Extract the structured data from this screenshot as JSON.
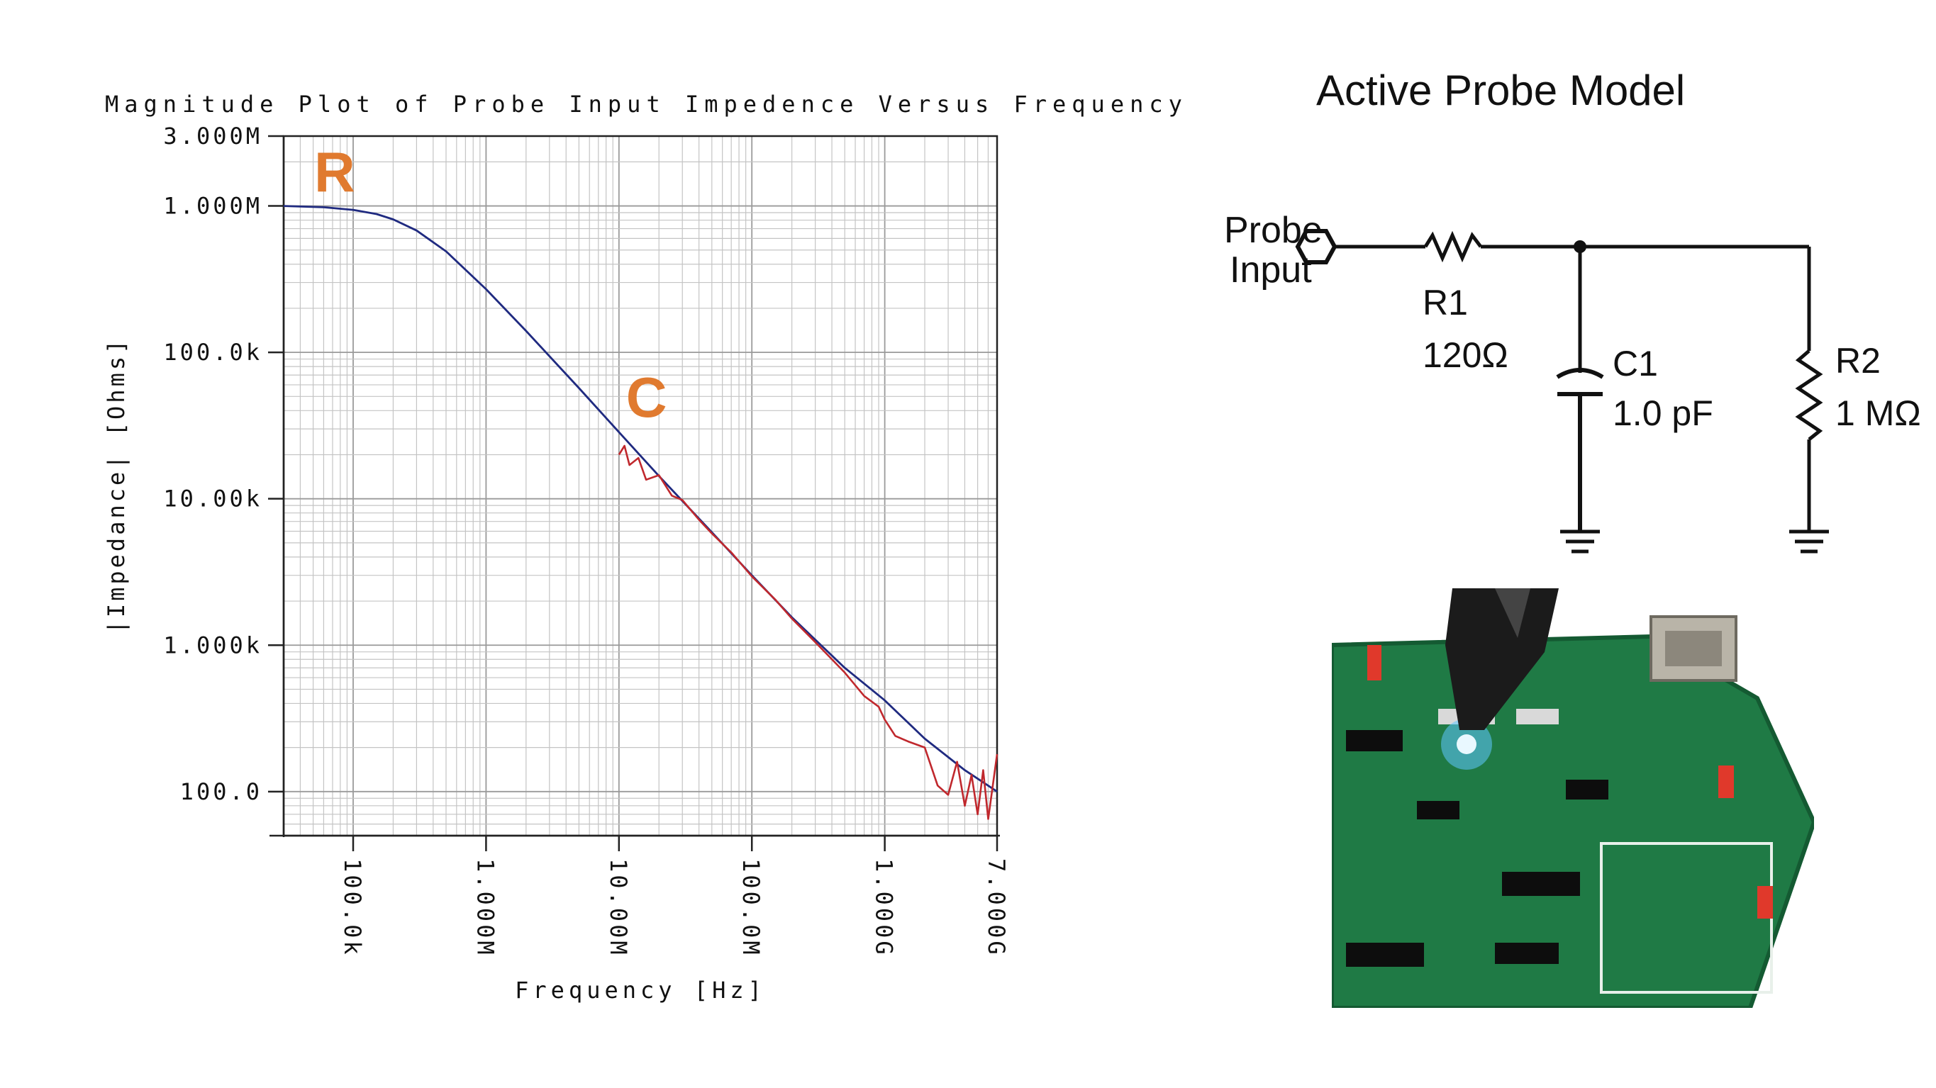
{
  "chart_data": {
    "type": "line",
    "title": "Magnitude Plot of Probe Input Impedence Versus Frequency",
    "xlabel": "Frequency [Hz]",
    "ylabel": "|Impedance| [Ohms]",
    "x_scale": "log",
    "y_scale": "log",
    "xlim": [
      30000,
      7000000000
    ],
    "ylim": [
      50,
      3000000
    ],
    "x_ticks": [
      {
        "value": 100000,
        "label": "100.0k"
      },
      {
        "value": 1000000,
        "label": "1.000M"
      },
      {
        "value": 10000000,
        "label": "10.00M"
      },
      {
        "value": 100000000,
        "label": "100.0M"
      },
      {
        "value": 1000000000,
        "label": "1.000G"
      },
      {
        "value": 7000000000,
        "label": "7.000G"
      }
    ],
    "y_ticks": [
      {
        "value": 3000000,
        "label": "3.000M"
      },
      {
        "value": 1000000,
        "label": "1.000M"
      },
      {
        "value": 100000,
        "label": "100.0k"
      },
      {
        "value": 10000,
        "label": "10.00k"
      },
      {
        "value": 1000,
        "label": "1.000k"
      },
      {
        "value": 100,
        "label": "100.0"
      }
    ],
    "annotations": [
      {
        "text": "R",
        "x": 45000,
        "y": 1000000,
        "color": "#e07a2f"
      },
      {
        "text": "C",
        "x": 10000000,
        "y": 29000,
        "color": "#e07a2f"
      }
    ],
    "series": [
      {
        "color": "#1f2a80",
        "x": [
          30000,
          60000,
          100000,
          150000,
          200000,
          300000,
          500000,
          1000000,
          2000000,
          5000000,
          10000000,
          20000000,
          50000000,
          100000000,
          200000000,
          500000000,
          1000000000,
          2000000000,
          4000000000,
          7000000000
        ],
        "y": [
          1000000,
          980000,
          940000,
          880000,
          810000,
          680000,
          490000,
          270000,
          140000,
          57000,
          28500,
          14300,
          5900,
          3000,
          1550,
          700,
          420,
          230,
          140,
          100
        ]
      },
      {
        "color": "#c0282d",
        "x": [
          10000000,
          11000000,
          12000000,
          14000000,
          16000000,
          20000000,
          25000000,
          30000000,
          40000000,
          50000000,
          70000000,
          100000000,
          150000000,
          200000000,
          300000000,
          500000000,
          700000000,
          900000000,
          1000000000,
          1200000000,
          1500000000,
          2000000000,
          2500000000,
          3000000000,
          3500000000,
          4000000000,
          4500000000,
          5000000000,
          5500000000,
          6000000000,
          7000000000
        ],
        "y": [
          20000,
          23000,
          17000,
          19000,
          13500,
          14500,
          10500,
          9800,
          7200,
          5800,
          4300,
          2950,
          2050,
          1520,
          1050,
          650,
          450,
          380,
          310,
          240,
          220,
          200,
          110,
          95,
          160,
          80,
          130,
          70,
          140,
          65,
          180
        ]
      }
    ]
  },
  "diagram": {
    "title": "Active Probe Model",
    "input_label_line1": "Probe",
    "input_label_line2": "Input",
    "r1_name": "R1",
    "r1_value": "120Ω",
    "c1_name": "C1",
    "c1_value": "1.0 pF",
    "r2_name": "R2",
    "r2_value": "1 MΩ"
  }
}
